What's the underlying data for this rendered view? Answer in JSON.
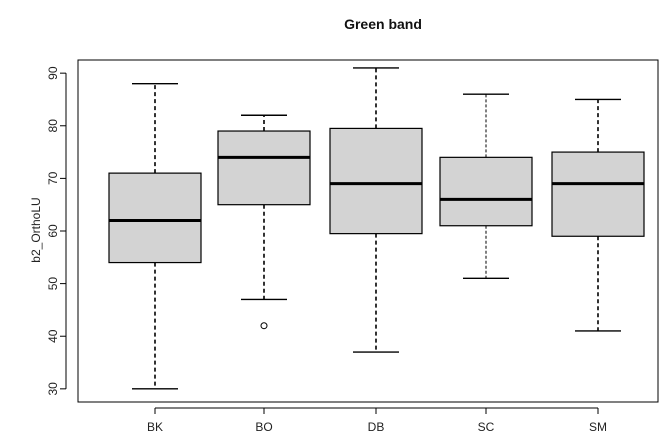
{
  "chart_data": {
    "type": "boxplot",
    "title": "Green band",
    "xlabel": "",
    "ylabel": "b2_OrthoLU",
    "ylim": [
      27.5,
      92.5
    ],
    "yticks": [
      30,
      40,
      50,
      60,
      70,
      80,
      90
    ],
    "categories": [
      "BK",
      "BO",
      "DB",
      "SC",
      "SM"
    ],
    "boxes": [
      {
        "name": "BK",
        "whisker_low": 30,
        "q1": 54,
        "median": 62,
        "q3": 71,
        "whisker_high": 88,
        "outliers": []
      },
      {
        "name": "BO",
        "whisker_low": 47,
        "q1": 65,
        "median": 74,
        "q3": 79,
        "whisker_high": 82,
        "outliers": [
          42
        ]
      },
      {
        "name": "DB",
        "whisker_low": 37,
        "q1": 59.5,
        "median": 69,
        "q3": 79.5,
        "whisker_high": 91,
        "outliers": []
      },
      {
        "name": "SC",
        "whisker_low": 51,
        "q1": 61,
        "median": 66,
        "q3": 74,
        "whisker_high": 86,
        "outliers": []
      },
      {
        "name": "SM",
        "whisker_low": 41,
        "q1": 59,
        "median": 69,
        "q3": 75,
        "whisker_high": 85,
        "outliers": []
      }
    ],
    "grid": false,
    "box_fill": "#d3d3d3",
    "line_color": "#000000"
  }
}
